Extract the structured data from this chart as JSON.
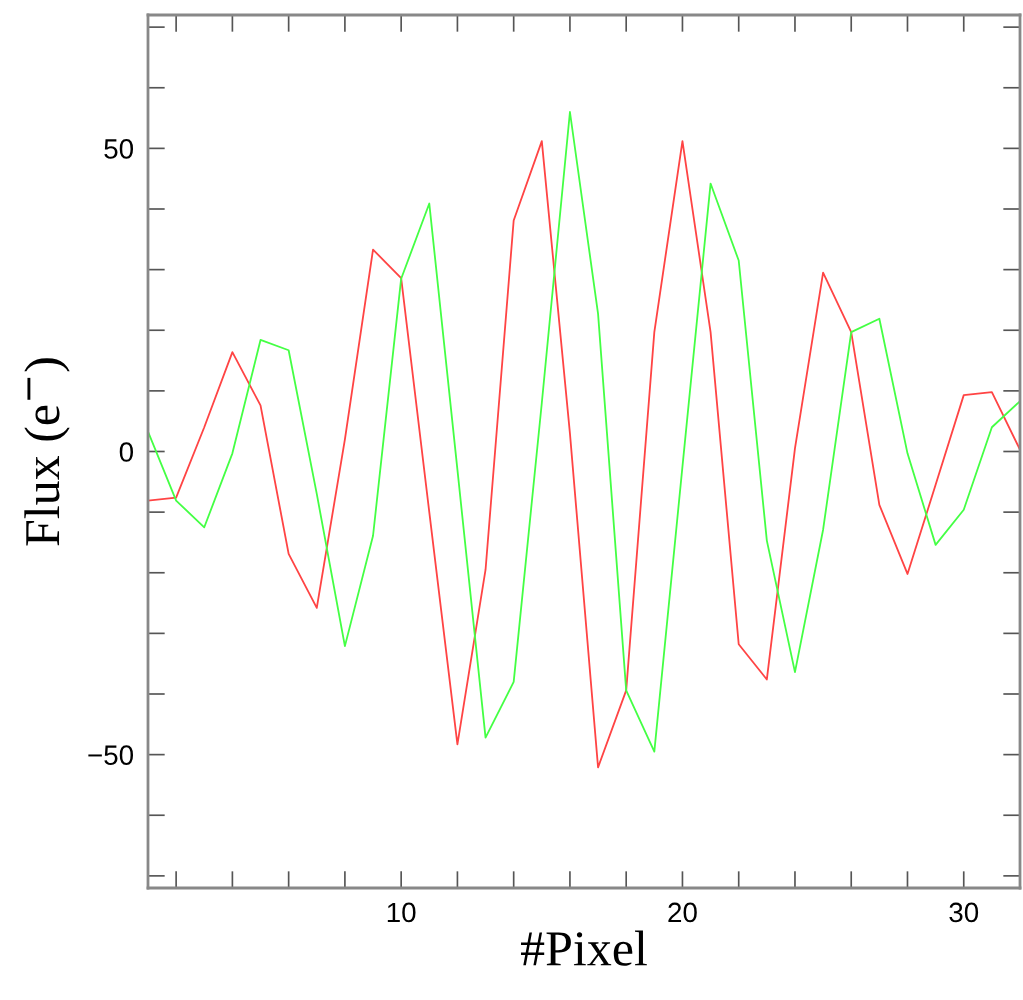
{
  "chart_data": {
    "type": "line",
    "xlabel": "#Pixel",
    "ylabel": "Flux (e$^{−}$)",
    "x": [
      1,
      2,
      3,
      4,
      5,
      6,
      7,
      8,
      9,
      10,
      11,
      12,
      13,
      14,
      15,
      16,
      17,
      18,
      19,
      20,
      21,
      22,
      23,
      24,
      25,
      26,
      27,
      28,
      29,
      30,
      31,
      32
    ],
    "series": [
      {
        "color": "#ff4444",
        "values": [
          -8.1,
          -7.6,
          4,
          16.4,
          7.6,
          -16.9,
          -25.8,
          2,
          33.3,
          28.6,
          -10,
          -48.3,
          -19.5,
          38.1,
          51.2,
          3,
          -52.1,
          -39.4,
          19.7,
          51.2,
          19.7,
          -31.8,
          -37.6,
          0.5,
          29.5,
          19.7,
          -8.8,
          -20.2,
          -5.5,
          9.3,
          9.8,
          0.3
        ]
      },
      {
        "color": "#44ff44",
        "values": [
          3.3,
          -8.1,
          -12.5,
          -0.3,
          18.4,
          16.7,
          -7,
          -32.1,
          -13.9,
          28.5,
          40.9,
          -3,
          -47.2,
          -38,
          8,
          56,
          22.7,
          -39.4,
          -49.5,
          -2.5,
          44.2,
          31.5,
          -14.7,
          -36.4,
          -12.9,
          19.7,
          21.9,
          -0.3,
          -15.4,
          -9.6,
          4,
          8.3
        ]
      }
    ],
    "xlim": [
      1,
      32
    ],
    "xticks": [
      10,
      20,
      30
    ],
    "ylim": [
      -72,
      72
    ],
    "yticks": [
      {
        "value": -50,
        "label": "−50"
      },
      0,
      50
    ],
    "grid": false,
    "legend": false,
    "marker": "none",
    "line_style": "solid"
  }
}
